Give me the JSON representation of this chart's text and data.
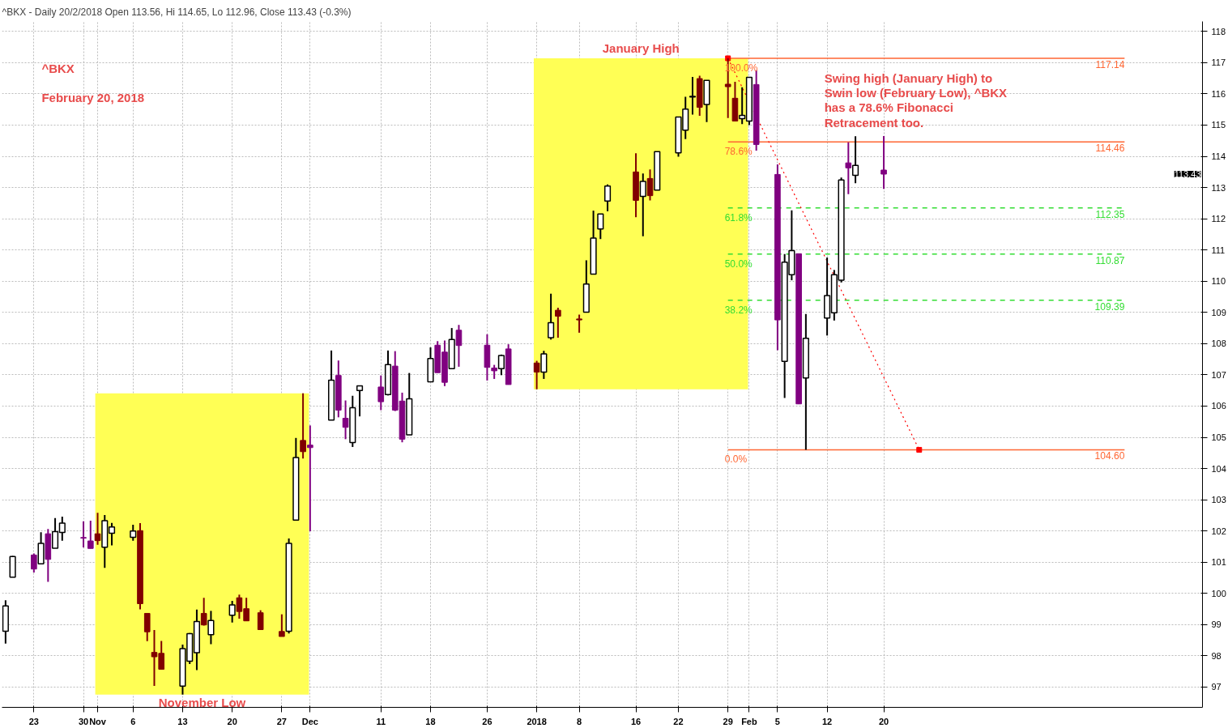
{
  "chart_data": {
    "type": "candlestick",
    "title": "^BKX - Daily 20/2/2018 Open 113.56, Hi 114.65, Lo 112.96, Close 113.43 (-0.3%)",
    "x": [
      "2017-10-19",
      "2017-10-20",
      "2017-10-23",
      "2017-10-24",
      "2017-10-25",
      "2017-10-26",
      "2017-10-27",
      "2017-10-30",
      "2017-10-31",
      "2017-11-01",
      "2017-11-02",
      "2017-11-03",
      "2017-11-06",
      "2017-11-07",
      "2017-11-08",
      "2017-11-09",
      "2017-11-10",
      "2017-11-13",
      "2017-11-14",
      "2017-11-15",
      "2017-11-16",
      "2017-11-17",
      "2017-11-20",
      "2017-11-21",
      "2017-11-22",
      "2017-11-24",
      "2017-11-27",
      "2017-11-28",
      "2017-11-29",
      "2017-11-30",
      "2017-12-01",
      "2017-12-04",
      "2017-12-05",
      "2017-12-06",
      "2017-12-07",
      "2017-12-08",
      "2017-12-11",
      "2017-12-12",
      "2017-12-13",
      "2017-12-14",
      "2017-12-15",
      "2017-12-18",
      "2017-12-19",
      "2017-12-20",
      "2017-12-21",
      "2017-12-22",
      "2017-12-26",
      "2017-12-27",
      "2017-12-28",
      "2017-12-29",
      "2018-01-02",
      "2018-01-03",
      "2018-01-04",
      "2018-01-05",
      "2018-01-08",
      "2018-01-09",
      "2018-01-10",
      "2018-01-11",
      "2018-01-12",
      "2018-01-16",
      "2018-01-17",
      "2018-01-18",
      "2018-01-19",
      "2018-01-22",
      "2018-01-23",
      "2018-01-24",
      "2018-01-25",
      "2018-01-26",
      "2018-01-29",
      "2018-01-30",
      "2018-01-31",
      "2018-02-01",
      "2018-02-02",
      "2018-02-05",
      "2018-02-06",
      "2018-02-07",
      "2018-02-08",
      "2018-02-09",
      "2018-02-12",
      "2018-02-13",
      "2018-02-14",
      "2018-02-15",
      "2018-02-16",
      "2018-02-20"
    ],
    "ohlc": [
      [
        98.79,
        99.78,
        98.39,
        99.6
      ],
      [
        100.52,
        101.2,
        100.52,
        101.18
      ],
      [
        101.23,
        101.28,
        100.67,
        100.78
      ],
      [
        100.95,
        101.96,
        100.95,
        101.6
      ],
      [
        101.91,
        102.06,
        100.37,
        101.09
      ],
      [
        101.45,
        102.41,
        101.45,
        101.98
      ],
      [
        101.95,
        102.46,
        101.69,
        102.25
      ],
      [
        101.79,
        102.31,
        101.47,
        101.77
      ],
      [
        101.68,
        102.33,
        101.44,
        101.44
      ],
      [
        101.91,
        102.58,
        101.56,
        101.69
      ],
      [
        101.48,
        102.51,
        100.82,
        102.33
      ],
      [
        101.93,
        102.26,
        101.54,
        102.13
      ],
      [
        101.8,
        102.2,
        101.69,
        102.0
      ],
      [
        102.01,
        102.25,
        99.49,
        99.67
      ],
      [
        99.36,
        99.36,
        98.47,
        98.77
      ],
      [
        98.11,
        98.83,
        97.04,
        97.97
      ],
      [
        98.08,
        98.48,
        97.57,
        97.57
      ],
      [
        97.03,
        98.36,
        96.76,
        98.23
      ],
      [
        97.83,
        98.73,
        97.74,
        98.71
      ],
      [
        98.1,
        99.48,
        97.54,
        99.1
      ],
      [
        99.36,
        99.86,
        98.97,
        98.99
      ],
      [
        98.68,
        99.44,
        98.37,
        99.13
      ],
      [
        99.3,
        99.76,
        99.07,
        99.63
      ],
      [
        99.86,
        99.96,
        99.19,
        99.42
      ],
      [
        99.51,
        99.86,
        99.12,
        99.12
      ],
      [
        99.38,
        99.46,
        98.84,
        98.84
      ],
      [
        98.78,
        99.33,
        98.62,
        98.62
      ],
      [
        98.79,
        101.76,
        98.72,
        101.6
      ],
      [
        102.35,
        104.98,
        102.35,
        104.35
      ],
      [
        104.9,
        106.41,
        104.32,
        104.54
      ],
      [
        104.75,
        105.38,
        101.99,
        104.67
      ],
      [
        105.55,
        107.78,
        105.55,
        106.83
      ],
      [
        106.98,
        107.46,
        105.64,
        105.87
      ],
      [
        105.61,
        106.18,
        104.94,
        105.32
      ],
      [
        104.83,
        106.33,
        104.69,
        105.95
      ],
      [
        106.5,
        106.65,
        105.67,
        106.65
      ],
      [
        106.61,
        106.98,
        105.87,
        106.14
      ],
      [
        106.37,
        107.78,
        106.34,
        107.33
      ],
      [
        107.28,
        107.76,
        105.84,
        105.87
      ],
      [
        106.16,
        106.43,
        104.84,
        104.94
      ],
      [
        105.08,
        107.06,
        105.08,
        106.23
      ],
      [
        106.78,
        107.88,
        106.78,
        107.52
      ],
      [
        107.95,
        108.08,
        107.07,
        107.07
      ],
      [
        107.73,
        108.1,
        106.64,
        106.76
      ],
      [
        107.2,
        108.5,
        107.2,
        108.13
      ],
      [
        108.43,
        108.6,
        107.26,
        107.94
      ],
      [
        107.95,
        108.3,
        106.82,
        107.24
      ],
      [
        107.22,
        107.32,
        106.87,
        107.13
      ],
      [
        107.2,
        107.65,
        106.99,
        107.62
      ],
      [
        107.83,
        107.98,
        106.69,
        106.69
      ],
      [
        107.38,
        107.45,
        106.54,
        107.09
      ],
      [
        107.09,
        107.77,
        106.87,
        107.67
      ],
      [
        108.19,
        109.6,
        108.13,
        108.67
      ],
      [
        109.07,
        109.15,
        108.19,
        108.88
      ],
      [
        108.79,
        108.93,
        108.35,
        108.76
      ],
      [
        109.01,
        110.67,
        109.01,
        109.91
      ],
      [
        110.23,
        112.26,
        110.23,
        111.38
      ],
      [
        111.67,
        112.15,
        111.35,
        112.15
      ],
      [
        112.57,
        113.1,
        112.24,
        113.05
      ],
      [
        113.5,
        114.1,
        112.05,
        112.59
      ],
      [
        112.72,
        113.45,
        111.44,
        113.2
      ],
      [
        113.29,
        113.58,
        112.59,
        112.74
      ],
      [
        112.92,
        114.16,
        112.92,
        114.15
      ],
      [
        114.11,
        115.26,
        113.99,
        115.26
      ],
      [
        114.84,
        115.91,
        114.55,
        115.51
      ],
      [
        115.92,
        116.54,
        115.34,
        115.9
      ],
      [
        116.49,
        116.58,
        115.3,
        115.57
      ],
      [
        115.66,
        116.43,
        115.1,
        116.43
      ],
      [
        116.31,
        117.14,
        115.23,
        116.23
      ],
      [
        115.86,
        116.39,
        115.13,
        115.13
      ],
      [
        115.21,
        116.21,
        115.03,
        115.31
      ],
      [
        115.13,
        116.53,
        115.0,
        116.53
      ],
      [
        116.3,
        116.76,
        114.18,
        114.38
      ],
      [
        113.42,
        113.74,
        107.79,
        108.76
      ],
      [
        107.43,
        110.87,
        106.26,
        110.61
      ],
      [
        110.21,
        112.27,
        110.03,
        110.98
      ],
      [
        110.88,
        110.88,
        106.07,
        106.07
      ],
      [
        106.9,
        108.95,
        104.6,
        108.17
      ],
      [
        108.82,
        110.76,
        108.26,
        109.54
      ],
      [
        108.99,
        110.36,
        108.74,
        110.21
      ],
      [
        110.03,
        113.32,
        109.96,
        113.24
      ],
      [
        113.79,
        114.45,
        112.79,
        113.63
      ],
      [
        113.39,
        114.64,
        113.14,
        113.71
      ],
      [
        113.56,
        114.65,
        112.96,
        113.43
      ]
    ],
    "colors": [
      "#ffffff",
      "#ffffff",
      "#800080",
      "#ffffff",
      "#800080",
      "#ffffff",
      "#ffffff",
      "#800080",
      "#800080",
      "#800000",
      "#ffffff",
      "#ffffff",
      "#ffffff",
      "#800000",
      "#800000",
      "#800000",
      "#800000",
      "#ffffff",
      "#ffffff",
      "#ffffff",
      "#800000",
      "#ffffff",
      "#ffffff",
      "#800000",
      "#800000",
      "#800000",
      "#800000",
      "#ffffff",
      "#ffffff",
      "#800000",
      "#800080",
      "#ffffff",
      "#800080",
      "#800080",
      "#ffffff",
      "#ffffff",
      "#800080",
      "#ffffff",
      "#800080",
      "#800080",
      "#ffffff",
      "#ffffff",
      "#800080",
      "#800080",
      "#ffffff",
      "#800080",
      "#800080",
      "#800080",
      "#ffffff",
      "#800080",
      "#800000",
      "#ffffff",
      "#ffffff",
      "#800000",
      "#800000",
      "#ffffff",
      "#ffffff",
      "#ffffff",
      "#ffffff",
      "#800000",
      "#ffffff",
      "#800000",
      "#ffffff",
      "#ffffff",
      "#ffffff",
      "#ffffff",
      "#800000",
      "#ffffff",
      "#800000",
      "#800000",
      "#ffffff",
      "#ffffff",
      "#800080",
      "#800080",
      "#ffffff",
      "#ffffff",
      "#800080",
      "#ffffff",
      "#ffffff",
      "#ffffff",
      "#ffffff",
      "#800080",
      "#ffffff",
      "#800080"
    ],
    "series": [
      {
        "type": "line",
        "name": "100.0%",
        "color": "#ff6633",
        "line_style": "solid",
        "x": [
          "2018-01-29",
          "2018-03-26"
        ],
        "values": [
          117.14,
          117.14
        ],
        "value_labels": [
          null,
          "117.14"
        ]
      },
      {
        "type": "line",
        "name": "78.6%",
        "color": "#ff6633",
        "line_style": "solid",
        "x": [
          "2018-01-29",
          "2018-03-26"
        ],
        "values": [
          114.46,
          114.46
        ],
        "value_labels": [
          null,
          "114.46"
        ]
      },
      {
        "type": "line",
        "name": "61.8%",
        "color": "#33dd33",
        "line_style": "dashed",
        "x": [
          "2018-01-29",
          "2018-03-26"
        ],
        "values": [
          112.35,
          112.35
        ],
        "value_labels": [
          null,
          "112.35"
        ]
      },
      {
        "type": "line",
        "name": "50.0%",
        "color": "#33dd33",
        "line_style": "dashed",
        "x": [
          "2018-01-29",
          "2018-03-26"
        ],
        "values": [
          110.87,
          110.87
        ],
        "value_labels": [
          null,
          "110.87"
        ]
      },
      {
        "type": "line",
        "name": "38.2%",
        "color": "#33dd33",
        "line_style": "dashed",
        "x": [
          "2018-01-29",
          "2018-03-26"
        ],
        "values": [
          109.39,
          109.39
        ],
        "value_labels": [
          null,
          "109.39"
        ]
      },
      {
        "type": "line",
        "name": "0.0%",
        "color": "#ff6633",
        "line_style": "solid",
        "x": [
          "2018-01-29",
          "2018-03-26"
        ],
        "values": [
          104.6,
          104.6
        ],
        "value_labels": [
          null,
          "104.60"
        ]
      },
      {
        "type": "line",
        "color": "#ff0000",
        "line_style": "dotted",
        "marker": "square",
        "x": [
          "2018-01-29",
          "2018-02-25"
        ],
        "values": [
          117.14,
          104.6
        ]
      }
    ],
    "bands": [
      {
        "axis": "x",
        "from": "2017-10-31T16:00",
        "to": "2017-11-30T20:00",
        "label": "November Low",
        "color": "#ffff55"
      },
      {
        "axis": "x",
        "from": "2018-01-01T14:00",
        "to": "2018-01-31T20:00",
        "label": "January High",
        "color": "#ffff55"
      }
    ],
    "annotations": [
      "^BKX",
      "February 20, 2018",
      "Swing high (January High) to",
      "Swin low (February Low), ^BKX",
      "has a 78.6% Fibonacci",
      "Retracement too.",
      "113.43"
    ],
    "xlim": [
      "2017-10-18T12:00",
      "2018-04-06"
    ],
    "ylim": [
      96.35,
      118.32
    ],
    "xticks": [
      {
        "value": "2017-10-23",
        "label": "23"
      },
      {
        "value": "2017-10-30",
        "label": "30"
      },
      {
        "value": "2017-11-01",
        "label": "Nov"
      },
      {
        "value": "2017-11-06",
        "label": "6"
      },
      {
        "value": "2017-11-13",
        "label": "13"
      },
      {
        "value": "2017-11-20",
        "label": "20"
      },
      {
        "value": "2017-11-27",
        "label": "27"
      },
      {
        "value": "2017-12-01",
        "label": "Dec"
      },
      {
        "value": "2017-12-11",
        "label": "11"
      },
      {
        "value": "2017-12-18",
        "label": "18"
      },
      {
        "value": "2017-12-26",
        "label": "26"
      },
      {
        "value": "2018-01-02",
        "label": "2018"
      },
      {
        "value": "2018-01-08",
        "label": "8"
      },
      {
        "value": "2018-01-16",
        "label": "16"
      },
      {
        "value": "2018-01-22",
        "label": "22"
      },
      {
        "value": "2018-01-29",
        "label": "29"
      },
      {
        "value": "2018-02-01",
        "label": "Feb"
      },
      {
        "value": "2018-02-05",
        "label": "5"
      },
      {
        "value": "2018-02-12",
        "label": "12"
      },
      {
        "value": "2018-02-20",
        "label": "20"
      }
    ],
    "yticks": [
      97,
      98,
      99,
      100,
      101,
      102,
      103,
      104,
      105,
      106,
      107,
      108,
      109,
      110,
      111,
      112,
      113,
      114,
      115,
      116,
      117,
      118
    ],
    "grid": true
  }
}
